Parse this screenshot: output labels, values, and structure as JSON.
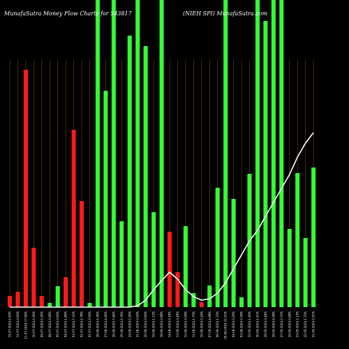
{
  "chart_data": {
    "type": "bar",
    "title_left": "MunafaSutra  Money Flow  Charts for 543817",
    "title_right": "(NIEH                    SPI) MunafaSutra.com",
    "colors": {
      "background": "#000000",
      "up": "#33ff33",
      "down": "#ff1a1a",
      "grid": "#7a4a10",
      "line": "#ffffff"
    },
    "ylim": [
      0,
      440
    ],
    "bars": [
      {
        "label": "15-07-2024 2.93%",
        "value": 16,
        "dir": "down"
      },
      {
        "label": "12-07-2024 0.64%",
        "value": 22,
        "dir": "down"
      },
      {
        "label": "11-07-2024 17.95%",
        "value": 340,
        "dir": "down"
      },
      {
        "label": "10-07-2024 0.30%",
        "value": 85,
        "dir": "down"
      },
      {
        "label": "09-07-2024 0.30%",
        "value": 16,
        "dir": "down"
      },
      {
        "label": "08-07-2024 3.66%",
        "value": 6,
        "dir": "up"
      },
      {
        "label": "05-07-2024 0.64%",
        "value": 30,
        "dir": "up"
      },
      {
        "label": "04-07-2024 1.96%",
        "value": 43,
        "dir": "down"
      },
      {
        "label": "03-07-2024 7.12%",
        "value": 254,
        "dir": "down"
      },
      {
        "label": "02-07-2024 2.78%",
        "value": 152,
        "dir": "down"
      },
      {
        "label": "01-07-2024 3.50%",
        "value": 6,
        "dir": "up"
      },
      {
        "label": "28-06-2024 5.76%",
        "value": 440,
        "dir": "up"
      },
      {
        "label": "27-06-2024 4.46%",
        "value": 310,
        "dir": "up"
      },
      {
        "label": "26-06-2024 7.46%",
        "value": 440,
        "dir": "up"
      },
      {
        "label": "25-06-2024 3.76%",
        "value": 123,
        "dir": "up"
      },
      {
        "label": "24-06-2024 0.36%",
        "value": 389,
        "dir": "up"
      },
      {
        "label": "21-06-2024 0.54%",
        "value": 440,
        "dir": "up"
      },
      {
        "label": "20-06-2024 0.94%",
        "value": 374,
        "dir": "up"
      },
      {
        "label": "19-06-2024 1.13%",
        "value": 136,
        "dir": "up"
      },
      {
        "label": "18-06-2024 0.98%",
        "value": 440,
        "dir": "up"
      },
      {
        "label": "14-06-2024 0.19%",
        "value": 108,
        "dir": "down"
      },
      {
        "label": "13-06-2024 0.49%",
        "value": 50,
        "dir": "down"
      },
      {
        "label": "12-06-2024 3.59%",
        "value": 116,
        "dir": "up"
      },
      {
        "label": "11-06-2024 1.75%",
        "value": 20,
        "dir": "up"
      },
      {
        "label": "10-06-2024 0.16%",
        "value": 7,
        "dir": "down"
      },
      {
        "label": "07-06-2024 4.98%",
        "value": 31,
        "dir": "up"
      },
      {
        "label": "06-06-2024 1.72%",
        "value": 171,
        "dir": "up"
      },
      {
        "label": "05-06-2024 12.51%",
        "value": 440,
        "dir": "up"
      },
      {
        "label": "04-06-2024 0.20%",
        "value": 155,
        "dir": "up"
      },
      {
        "label": "03-06-2024 0.39%",
        "value": 14,
        "dir": "up"
      },
      {
        "label": "31-05-2024 1.40%",
        "value": 191,
        "dir": "up"
      },
      {
        "label": "30-05-2024 1.51%",
        "value": 440,
        "dir": "up"
      },
      {
        "label": "29-05-2024 0.48%",
        "value": 410,
        "dir": "up"
      },
      {
        "label": "28-05-2024 6.58%",
        "value": 440,
        "dir": "up"
      },
      {
        "label": "27-05-2024 0.72%",
        "value": 440,
        "dir": "up"
      },
      {
        "label": "24-05-2024 0.68%",
        "value": 112,
        "dir": "up"
      },
      {
        "label": "23-05-2024 2.13%",
        "value": 192,
        "dir": "up"
      },
      {
        "label": "22-05-2024 1.72%",
        "value": 99,
        "dir": "up"
      },
      {
        "label": "21-05-2024 0.51%",
        "value": 200,
        "dir": "up"
      }
    ],
    "line": [
      0,
      0,
      0,
      0,
      0,
      0,
      0,
      0,
      0,
      0,
      0,
      0,
      0,
      0,
      0,
      0,
      2,
      10,
      25,
      38,
      50,
      40,
      25,
      15,
      10,
      12,
      20,
      35,
      55,
      75,
      95,
      110,
      130,
      150,
      170,
      190,
      215,
      235,
      250
    ]
  }
}
